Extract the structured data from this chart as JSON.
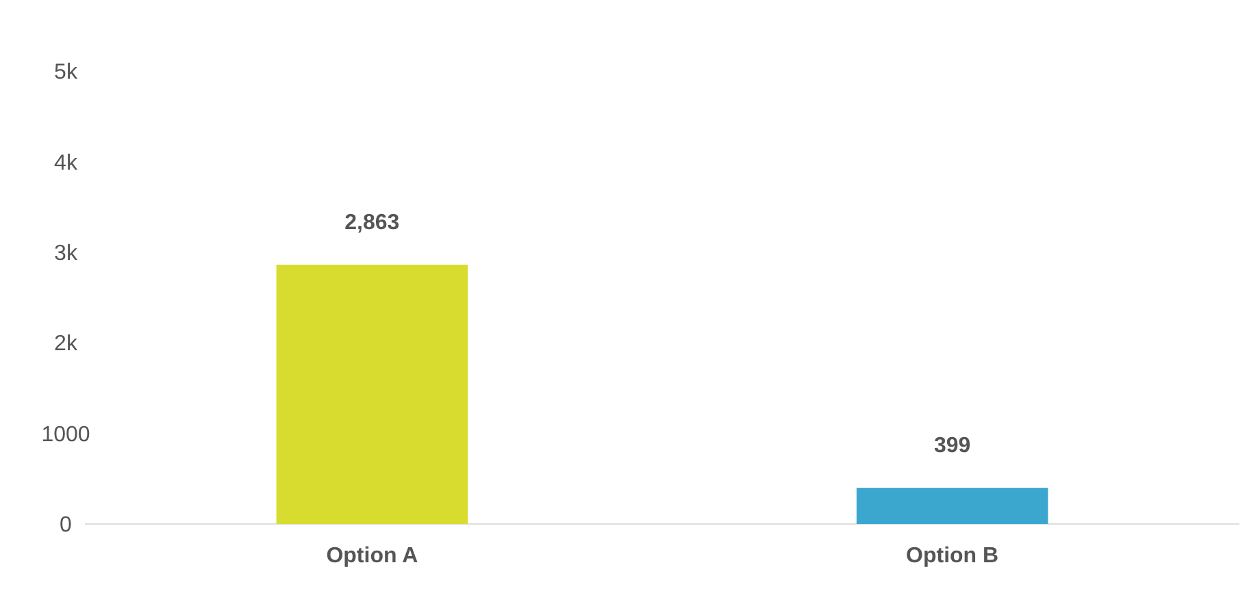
{
  "chart_data": {
    "type": "bar",
    "categories": [
      "Option A",
      "Option B"
    ],
    "values": [
      2863,
      399
    ],
    "colors": [
      "#d8dc2e",
      "#3ba7cf"
    ],
    "value_labels": [
      "2,863",
      "399"
    ],
    "ylim": [
      0,
      5000
    ],
    "yticks": [
      0,
      1000,
      {
        "value": 2000,
        "label": "2k"
      },
      {
        "value": 3000,
        "label": "3k"
      },
      {
        "value": 4000,
        "label": "4k"
      },
      {
        "value": 5000,
        "label": "5k"
      }
    ]
  }
}
